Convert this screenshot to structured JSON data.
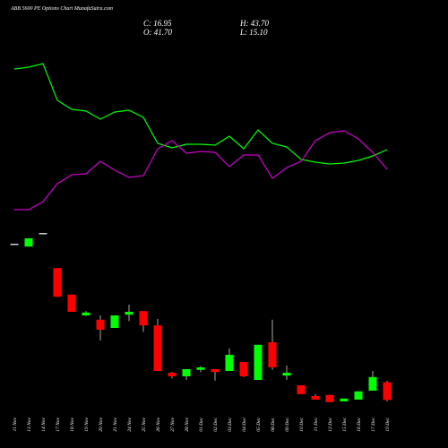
{
  "chart_data": {
    "type": "candlestick",
    "title": "ABB 5600 PE Options Chart MunafaSutra.com",
    "ohlc_labels": [
      "C: 16.95",
      "H: 43.70",
      "O: 41.70",
      "L: 15.10"
    ],
    "categories": [
      "11 Nov",
      "13 Nov",
      "14 Nov",
      "17 Nov",
      "18 Nov",
      "19 Nov",
      "20 Nov",
      "21 Nov",
      "24 Nov",
      "25 Nov",
      "26 Nov",
      "27 Nov",
      "28 Nov",
      "01 Dec",
      "02 Dec",
      "03 Dec",
      "04 Dec",
      "05 Dec",
      "08 Dec",
      "09 Dec",
      "10 Dec",
      "11 Dec",
      "12 Dec",
      "15 Dec",
      "16 Dec",
      "17 Dec",
      "19 Dec"
    ],
    "open": [
      235,
      231,
      250,
      201,
      164,
      135,
      129,
      117.5,
      136,
      141,
      121,
      55,
      50,
      59,
      60,
      57.5,
      70,
      45,
      97.5,
      51,
      37.5,
      22.5,
      24,
      15,
      17.5,
      30,
      41.7
    ],
    "high": [
      235,
      242.5,
      250,
      201,
      164,
      141,
      135,
      135,
      150,
      141,
      130,
      56,
      60,
      64,
      60,
      89,
      70,
      94,
      129,
      65,
      37.5,
      25,
      24,
      19,
      29,
      57.5,
      43.7
    ],
    "low": [
      235,
      231,
      250,
      161,
      140,
      134,
      100,
      117.5,
      127,
      112,
      57.5,
      47,
      45,
      56,
      44,
      57.5,
      49,
      45,
      59,
      45,
      25,
      17.5,
      14,
      15,
      17.5,
      30,
      15.1
    ],
    "close": [
      235,
      242.5,
      250,
      161,
      140,
      139,
      115,
      135,
      140,
      121,
      57.5,
      50,
      60,
      62.5,
      56,
      80,
      50,
      94,
      62.5,
      55,
      25,
      17.5,
      14,
      19,
      29,
      49,
      16.95
    ],
    "ylim": [
      0,
      250
    ],
    "up_color": "#00ff00",
    "down_color": "#ff0000",
    "lines": [
      {
        "color": "#00ff00",
        "values": [
          163,
          165,
          169,
          128,
          118,
          116,
          107,
          115,
          117,
          109,
          80,
          75,
          79,
          79,
          78,
          88,
          74,
          95,
          80,
          76,
          62,
          59,
          57,
          58,
          61,
          66,
          73
        ]
      },
      {
        "color": "#cc00cc",
        "values": [
          6,
          6,
          15,
          35,
          45,
          46,
          60,
          50,
          42,
          44,
          74,
          83,
          69,
          71,
          70,
          54,
          67,
          67,
          41,
          53,
          60,
          83,
          92,
          94,
          85,
          70,
          51
        ]
      }
    ],
    "y2lim": [
      0,
      180
    ]
  }
}
